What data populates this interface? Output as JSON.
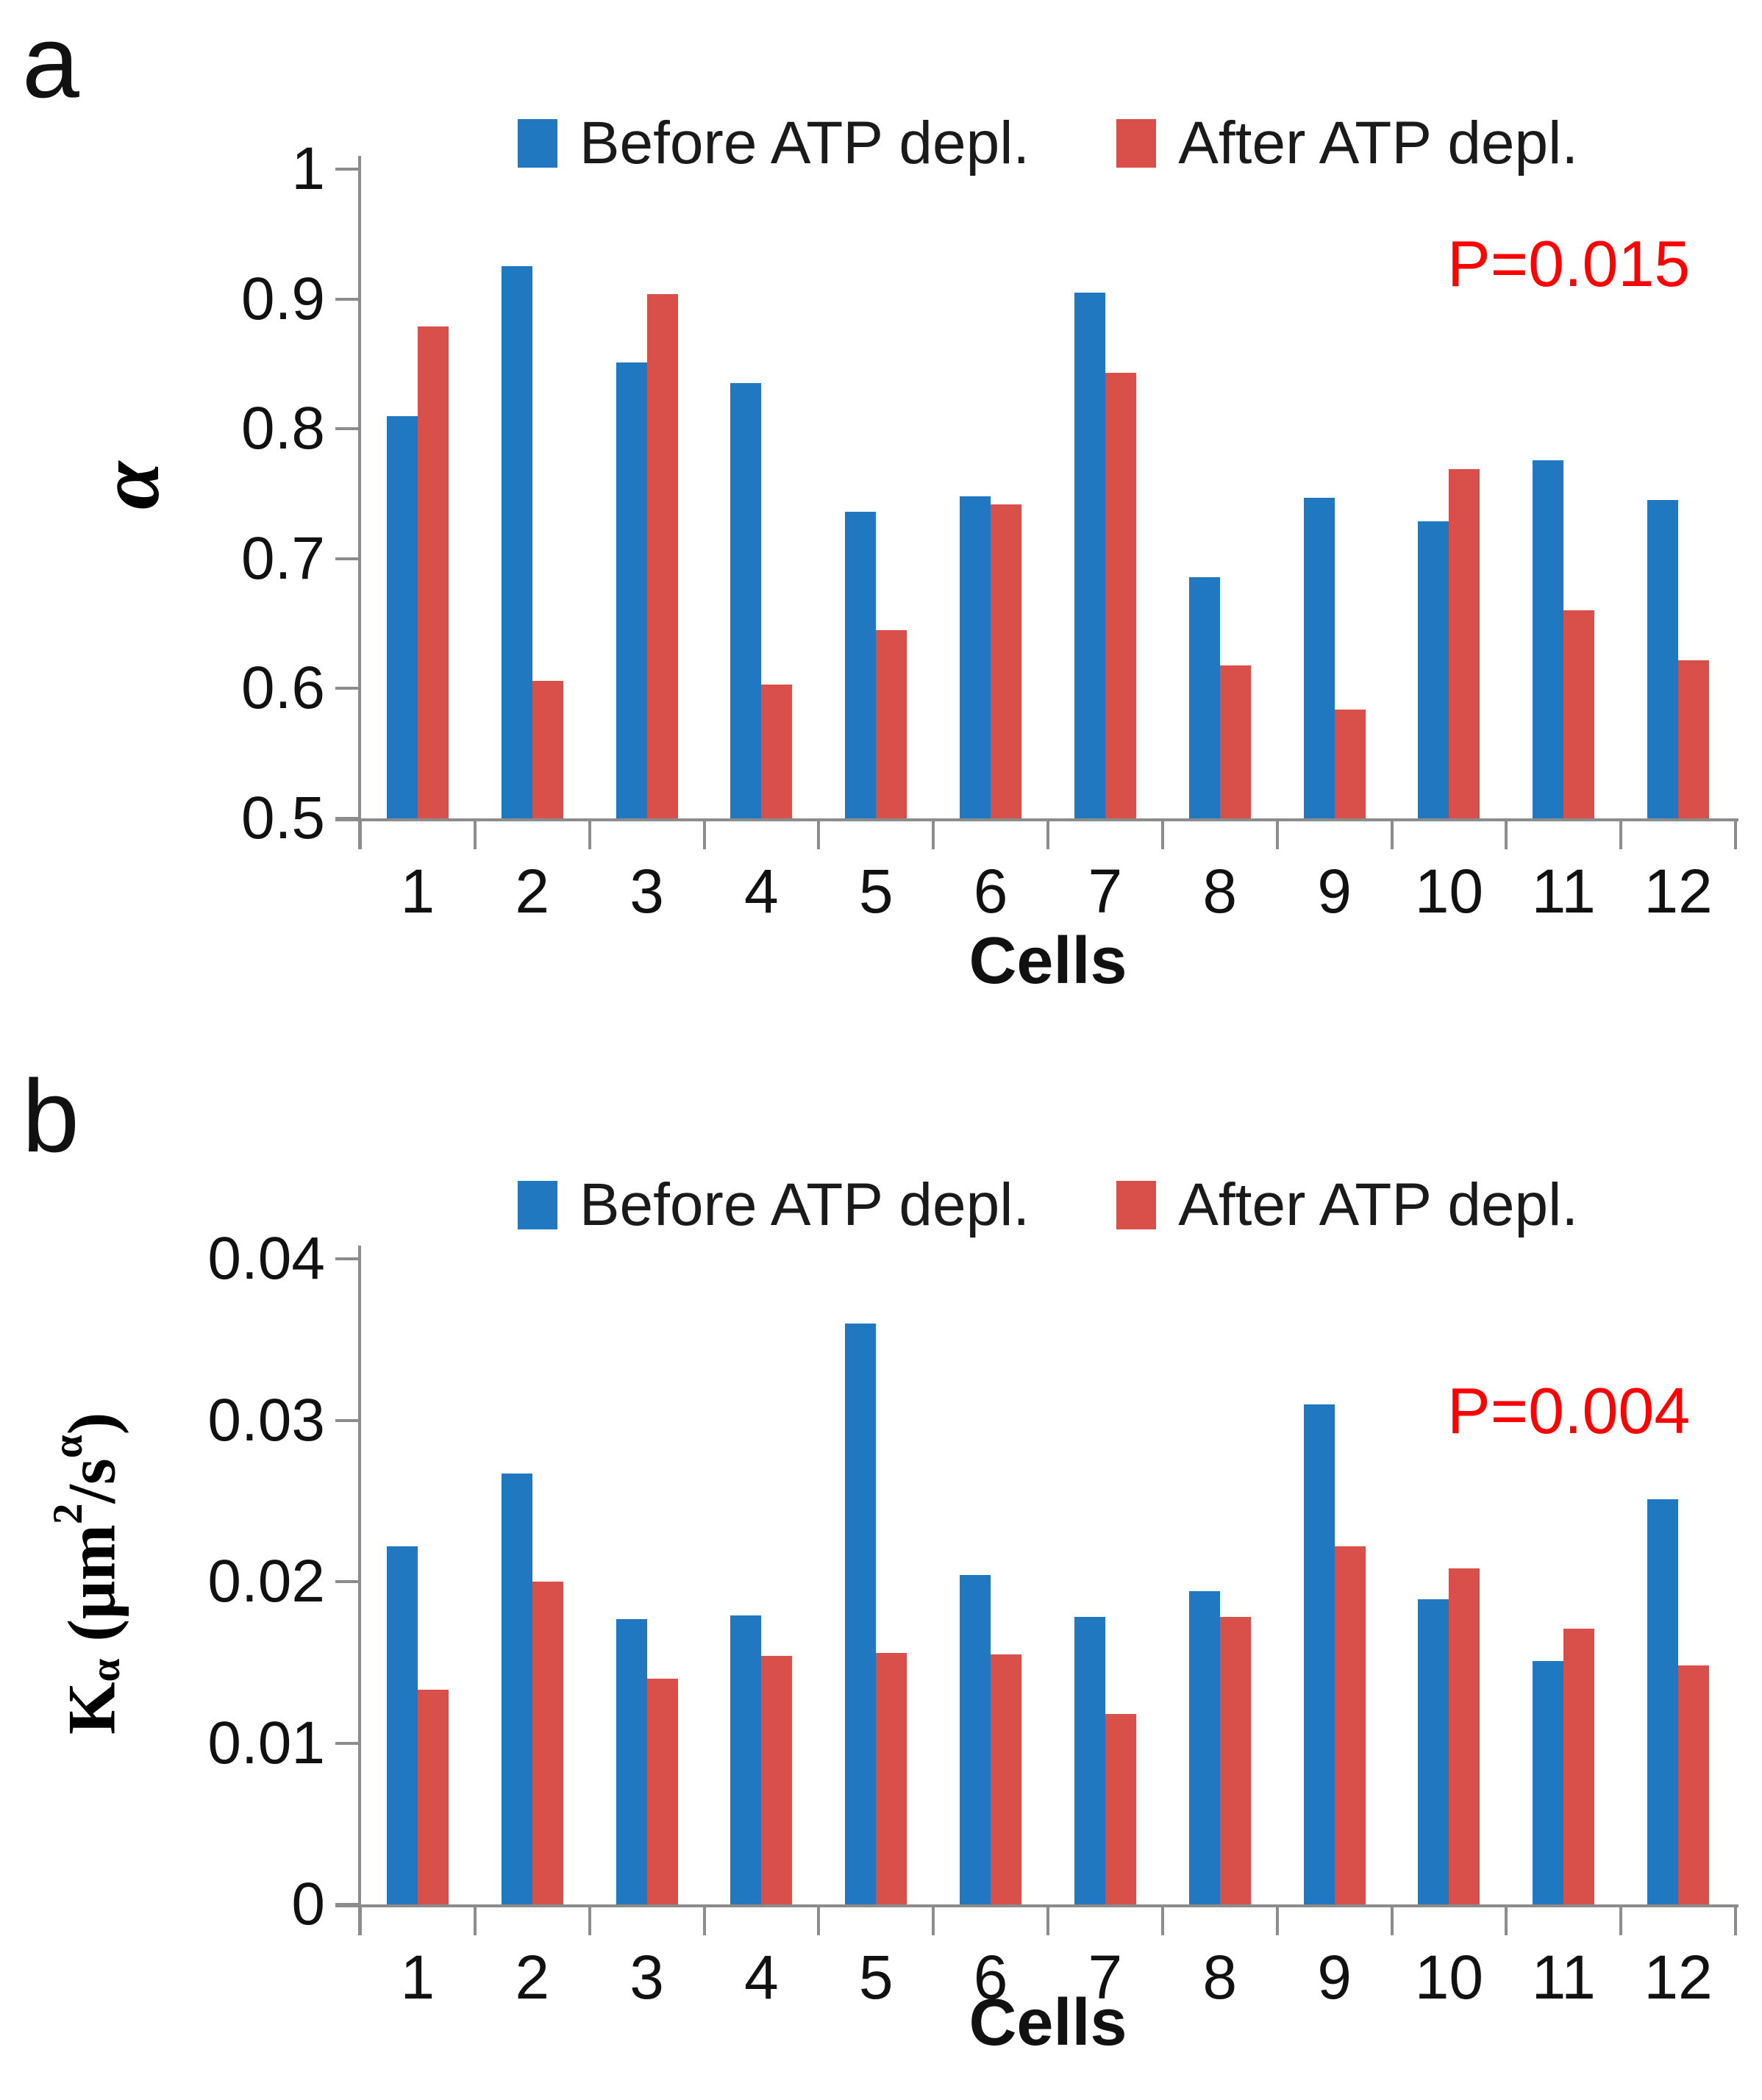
{
  "panel_letters": [
    "a",
    "b"
  ],
  "colors": {
    "before_series": "#2079c0",
    "after_series": "#d94f49",
    "p_value_text": "#ff0000",
    "axis": "#8c8c8c"
  },
  "chart_data": [
    {
      "id": "a",
      "type": "bar",
      "title": "",
      "categories": [
        "1",
        "2",
        "3",
        "4",
        "5",
        "6",
        "7",
        "8",
        "9",
        "10",
        "11",
        "12"
      ],
      "series": [
        {
          "name": "Before ATP depl.",
          "color": "#2079c0",
          "values": [
            0.81,
            0.925,
            0.851,
            0.835,
            0.736,
            0.748,
            0.905,
            0.686,
            0.747,
            0.729,
            0.776,
            0.745
          ]
        },
        {
          "name": "After ATP depl.",
          "color": "#d94f49",
          "values": [
            0.879,
            0.606,
            0.904,
            0.603,
            0.645,
            0.742,
            0.843,
            0.618,
            0.584,
            0.769,
            0.66,
            0.622
          ]
        }
      ],
      "xlabel": "Cells",
      "ylabel": "α",
      "ylim": [
        0.5,
        1.0
      ],
      "yticks": [
        {
          "value": 1.0,
          "label": "1"
        },
        {
          "value": 0.9,
          "label": "0.9"
        },
        {
          "value": 0.8,
          "label": "0.8"
        },
        {
          "value": 0.7,
          "label": "0.7"
        },
        {
          "value": 0.6,
          "label": "0.6"
        },
        {
          "value": 0.5,
          "label": "0.5"
        }
      ],
      "grid": false,
      "legend_position": "top",
      "annotation": {
        "text": "P=0.015",
        "color": "#ff0000"
      }
    },
    {
      "id": "b",
      "type": "bar",
      "title": "",
      "categories": [
        "1",
        "2",
        "3",
        "4",
        "5",
        "6",
        "7",
        "8",
        "9",
        "10",
        "11",
        "12"
      ],
      "series": [
        {
          "name": "Before ATP depl.",
          "color": "#2079c0",
          "values": [
            0.0222,
            0.0267,
            0.0177,
            0.0179,
            0.036,
            0.0204,
            0.0178,
            0.0194,
            0.031,
            0.0189,
            0.0151,
            0.0251
          ]
        },
        {
          "name": "After ATP depl.",
          "color": "#d94f49",
          "values": [
            0.0133,
            0.02,
            0.014,
            0.0154,
            0.0156,
            0.0155,
            0.0118,
            0.0178,
            0.0222,
            0.0208,
            0.0171,
            0.0148
          ]
        }
      ],
      "xlabel": "Cells",
      "ylabel": "Kα (μm²/sα)",
      "ylabel_html": "K<sub>α</sub> (μm<sup>2</sup>/s<sup>α</sup>)",
      "ylim": [
        0,
        0.04
      ],
      "yticks": [
        {
          "value": 0.04,
          "label": "0.04"
        },
        {
          "value": 0.03,
          "label": "0.03"
        },
        {
          "value": 0.02,
          "label": "0.02"
        },
        {
          "value": 0.01,
          "label": "0.01"
        },
        {
          "value": 0.0,
          "label": "0"
        }
      ],
      "grid": false,
      "legend_position": "top",
      "annotation": {
        "text": "P=0.004",
        "color": "#ff0000"
      }
    }
  ]
}
